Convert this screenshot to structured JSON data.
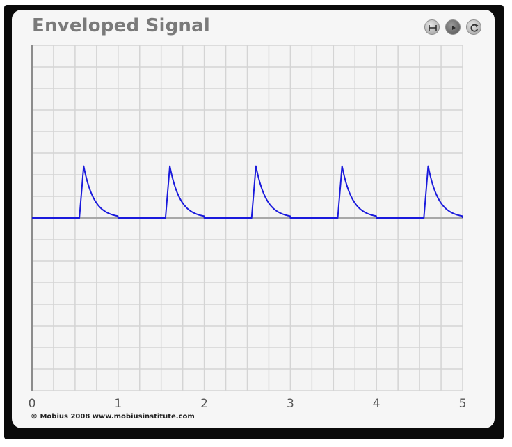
{
  "title": "Enveloped Signal",
  "credit": "© Mobius 2008 www.mobiusinstitute.com",
  "controls": [
    {
      "icon": "fit-width-icon"
    },
    {
      "icon": "play-icon"
    },
    {
      "icon": "reset-icon"
    }
  ],
  "colors": {
    "signal": "#1a1adc",
    "axis": "#8c8c8c",
    "grid": "#d4d4d4",
    "zero_line": "#a8a8a8",
    "title": "#7a7a7a"
  },
  "chart_data": {
    "type": "line",
    "title": "Enveloped Signal",
    "xlabel": "",
    "ylabel": "",
    "xlim": [
      0,
      5
    ],
    "ylim": [
      -1,
      1
    ],
    "x_ticks": [
      "0",
      "1",
      "2",
      "3",
      "4",
      "5"
    ],
    "grid": true,
    "series": [
      {
        "values": {
          "period": 1,
          "pulse_start": 0.55,
          "rise_end": 0.6,
          "peak_amplitude": 0.3,
          "decay_time_constant": 0.12
        }
      }
    ]
  }
}
